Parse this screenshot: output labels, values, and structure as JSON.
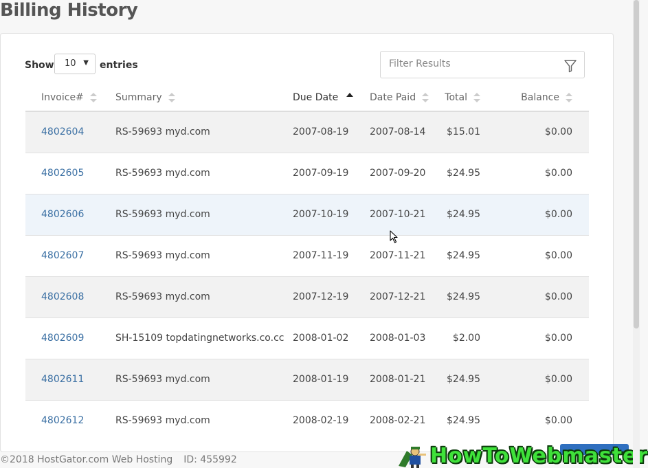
{
  "page": {
    "title": "Billing History"
  },
  "controls": {
    "show_label": "Show",
    "entries_label": "entries",
    "page_length": "10",
    "filter_placeholder": "Filter Results"
  },
  "table": {
    "columns": [
      {
        "label": "Invoice#",
        "sort": "none"
      },
      {
        "label": "Summary",
        "sort": "none"
      },
      {
        "label": "Due Date",
        "sort": "ascending"
      },
      {
        "label": "Date Paid",
        "sort": "none"
      },
      {
        "label": "Total",
        "sort": "none"
      },
      {
        "label": "Balance",
        "sort": "none"
      }
    ],
    "rows": [
      {
        "invoice": "4802604",
        "summary": "RS-59693 myd.com",
        "due_date": "2007-08-19",
        "date_paid": "2007-08-14",
        "total": "$15.01",
        "balance": "$0.00"
      },
      {
        "invoice": "4802605",
        "summary": "RS-59693 myd.com",
        "due_date": "2007-09-19",
        "date_paid": "2007-09-20",
        "total": "$24.95",
        "balance": "$0.00"
      },
      {
        "invoice": "4802606",
        "summary": "RS-59693 myd.com",
        "due_date": "2007-10-19",
        "date_paid": "2007-10-21",
        "total": "$24.95",
        "balance": "$0.00"
      },
      {
        "invoice": "4802607",
        "summary": "RS-59693 myd.com",
        "due_date": "2007-11-19",
        "date_paid": "2007-11-21",
        "total": "$24.95",
        "balance": "$0.00"
      },
      {
        "invoice": "4802608",
        "summary": "RS-59693 myd.com",
        "due_date": "2007-12-19",
        "date_paid": "2007-12-21",
        "total": "$24.95",
        "balance": "$0.00"
      },
      {
        "invoice": "4802609",
        "summary": "SH-15109 topdatingnetworks.co.cc",
        "due_date": "2008-01-02",
        "date_paid": "2008-01-03",
        "total": "$2.00",
        "balance": "$0.00"
      },
      {
        "invoice": "4802611",
        "summary": "RS-59693 myd.com",
        "due_date": "2008-01-19",
        "date_paid": "2008-01-21",
        "total": "$24.95",
        "balance": "$0.00"
      },
      {
        "invoice": "4802612",
        "summary": "RS-59693 myd.com",
        "due_date": "2008-02-19",
        "date_paid": "2008-02-21",
        "total": "$24.95",
        "balance": "$0.00"
      }
    ]
  },
  "footer": {
    "copyright": "©2018 HostGator.com Web Hosting",
    "id": "ID: 455992"
  },
  "watermark": {
    "text": "HowToWebmaster"
  },
  "colors": {
    "link": "#3a6fa3",
    "stripe": "#f2f2f2",
    "hover_row": "#eef4fa",
    "watermark_green": "#3fe13a"
  }
}
